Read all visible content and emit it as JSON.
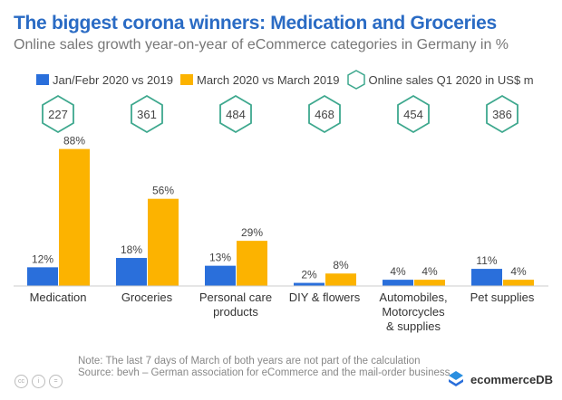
{
  "title": "The biggest corona winners: Medication and Groceries",
  "subtitle": "Online sales growth year-on-year of eCommerce categories in Germany in %",
  "note": "Note: The last 7 days of March of both years are not part of the calculation",
  "source": "Source: bevh – German association for eCommerce and the mail-order business",
  "brand": "ecommerceDB",
  "cc_icons": [
    "cc",
    "i",
    "="
  ],
  "colors": {
    "blue": "#2a6fdb",
    "orange": "#fcb300",
    "hex": "#3ea88e"
  },
  "chart_data": {
    "type": "bar",
    "categories": [
      "Medication",
      "Groceries",
      "Personal care products",
      "DIY & flowers",
      "Automobiles, Motorcycles & supplies",
      "Pet supplies"
    ],
    "category_lines": [
      [
        "Medication"
      ],
      [
        "Groceries"
      ],
      [
        "Personal care",
        "products"
      ],
      [
        "DIY & flowers"
      ],
      [
        "Automobiles,",
        "Motorcycles",
        "& supplies"
      ],
      [
        "Pet supplies"
      ]
    ],
    "series": [
      {
        "name": "Jan/Febr 2020 vs 2019",
        "values": [
          12,
          18,
          13,
          2,
          4,
          11
        ],
        "labels": [
          "12%",
          "18%",
          "13%",
          "2%",
          "4%",
          "11%"
        ]
      },
      {
        "name": "March 2020 vs March 2019",
        "values": [
          88,
          56,
          29,
          8,
          4,
          4
        ],
        "labels": [
          "88%",
          "56%",
          "29%",
          "8%",
          "4%",
          "4%"
        ]
      }
    ],
    "hex_series": {
      "name": "Online sales Q1 2020 in US$ m",
      "values": [
        "227",
        "361",
        "484",
        "468",
        "454",
        "386"
      ]
    },
    "ylim": [
      0,
      100
    ]
  }
}
